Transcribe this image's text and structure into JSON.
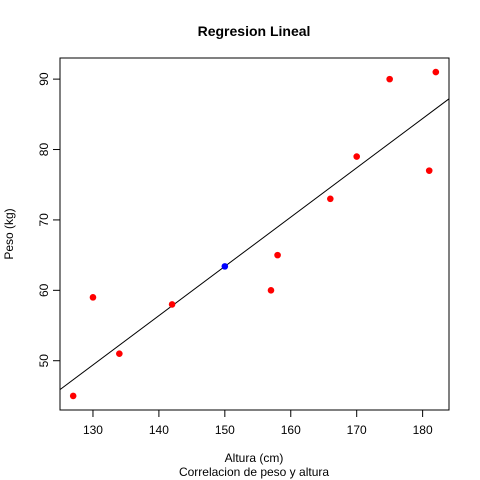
{
  "chart_data": {
    "type": "scatter",
    "title": "Regresion Lineal",
    "xlabel": "Altura (cm)",
    "subtitle": "Correlacion de peso y altura",
    "ylabel": "Peso (kg)",
    "xlim": [
      125,
      184
    ],
    "ylim": [
      43,
      93
    ],
    "x_ticks": [
      130,
      140,
      150,
      160,
      170,
      180
    ],
    "y_ticks": [
      50,
      60,
      70,
      80,
      90
    ],
    "grid": false,
    "series": [
      {
        "color": "#ff0000",
        "points": [
          {
            "x": 127,
            "y": 45
          },
          {
            "x": 130,
            "y": 59
          },
          {
            "x": 134,
            "y": 51
          },
          {
            "x": 142,
            "y": 58
          },
          {
            "x": 157,
            "y": 60
          },
          {
            "x": 158,
            "y": 65
          },
          {
            "x": 166,
            "y": 73
          },
          {
            "x": 170,
            "y": 79
          },
          {
            "x": 175,
            "y": 90
          },
          {
            "x": 181,
            "y": 77
          },
          {
            "x": 182,
            "y": 91
          }
        ]
      },
      {
        "color": "#0000ff",
        "points": [
          {
            "x": 150,
            "y": 63.4
          }
        ]
      }
    ],
    "regression_line": {
      "color": "#000000",
      "slope": 0.7,
      "intercept": -41.6
    }
  }
}
